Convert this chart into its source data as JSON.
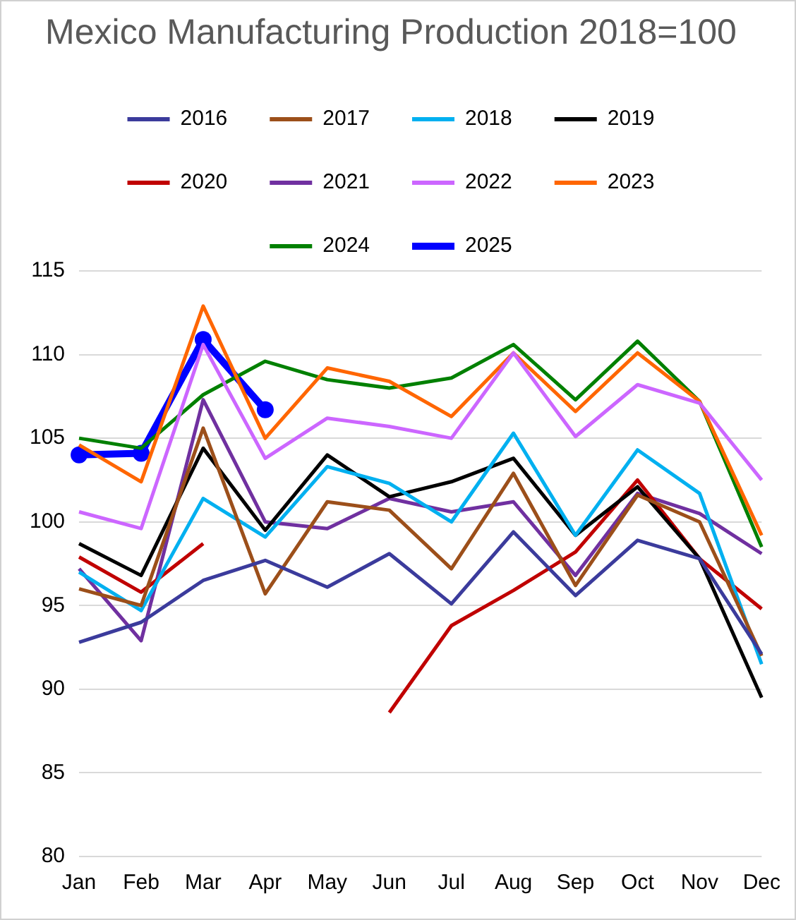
{
  "chart_data": {
    "type": "line",
    "title": "Mexico Manufacturing Production 2018=100",
    "categories": [
      "Jan",
      "Feb",
      "Mar",
      "Apr",
      "May",
      "Jun",
      "Jul",
      "Aug",
      "Sep",
      "Oct",
      "Nov",
      "Dec"
    ],
    "series": [
      {
        "name": "2016",
        "color": "#3b3b9c",
        "values": [
          92.8,
          94.0,
          96.5,
          97.7,
          96.1,
          98.1,
          95.1,
          99.4,
          95.6,
          98.9,
          97.8,
          92.1
        ]
      },
      {
        "name": "2017",
        "color": "#9c4f1a",
        "values": [
          96.0,
          95.0,
          105.6,
          95.7,
          101.2,
          100.7,
          97.2,
          102.9,
          96.2,
          101.6,
          100.0,
          92.0
        ]
      },
      {
        "name": "2018",
        "color": "#00b0f0",
        "values": [
          97.0,
          94.7,
          101.4,
          99.1,
          103.3,
          102.3,
          100.0,
          105.3,
          99.2,
          104.3,
          101.7,
          91.5
        ]
      },
      {
        "name": "2019",
        "color": "#000000",
        "values": [
          98.7,
          96.8,
          104.4,
          99.5,
          104.0,
          101.5,
          102.4,
          103.8,
          99.2,
          102.1,
          97.8,
          89.5
        ]
      },
      {
        "name": "2020",
        "color": "#c00000",
        "values": [
          97.9,
          95.8,
          98.7,
          null,
          null,
          88.6,
          93.8,
          95.9,
          98.2,
          102.5,
          97.8,
          94.8
        ]
      },
      {
        "name": "2021",
        "color": "#7030a0",
        "values": [
          97.2,
          92.9,
          107.3,
          100.0,
          99.6,
          101.4,
          100.6,
          101.2,
          96.8,
          101.7,
          100.5,
          98.1
        ]
      },
      {
        "name": "2022",
        "color": "#cc66ff",
        "values": [
          100.6,
          99.6,
          110.6,
          103.8,
          106.2,
          105.7,
          105.0,
          110.1,
          105.1,
          108.2,
          107.1,
          102.5
        ]
      },
      {
        "name": "2023",
        "color": "#ff6600",
        "values": [
          104.6,
          102.4,
          112.9,
          105.0,
          109.2,
          108.4,
          106.3,
          110.1,
          106.6,
          110.1,
          107.2,
          99.2
        ]
      },
      {
        "name": "2024",
        "color": "#008000",
        "values": [
          105.0,
          104.4,
          107.6,
          109.6,
          108.5,
          108.0,
          108.6,
          110.6,
          107.3,
          110.8,
          107.2,
          98.5
        ]
      },
      {
        "name": "2025",
        "color": "#0000ff",
        "marker": "circle",
        "values": [
          104.0,
          104.1,
          110.9,
          106.7,
          null,
          null,
          null,
          null,
          null,
          null,
          null,
          null
        ]
      }
    ],
    "ylim": [
      80,
      115
    ],
    "yticks": [
      80,
      85,
      90,
      95,
      100,
      105,
      110,
      115
    ],
    "grid": "y",
    "legend": "top",
    "marker": "none",
    "line_style": "solid"
  }
}
